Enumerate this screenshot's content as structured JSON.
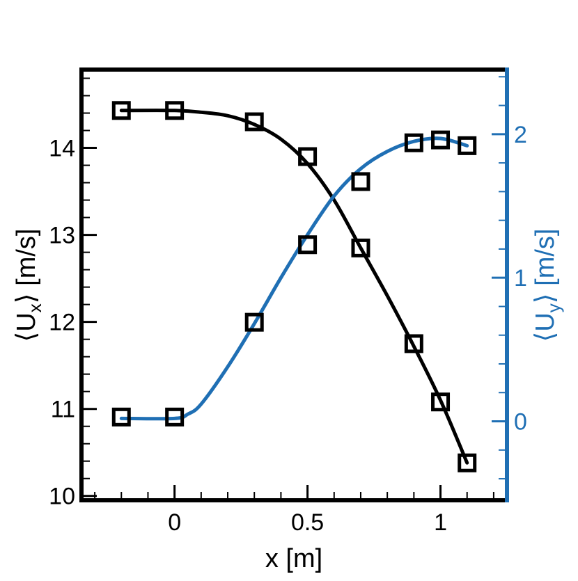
{
  "colors": {
    "ux_series": "#000000",
    "uy_series": "#1f6fb4",
    "left_axis": "#000000",
    "right_axis": "#1f6fb4"
  },
  "chart_data": {
    "type": "line",
    "xlabel": "x [m]",
    "ylabel_left": "⟨U_x⟩ [m/s]",
    "ylabel_right": "⟨U_y⟩ [m/s]",
    "ylabel_left_parts": {
      "pre": "⟨U",
      "sub": "x",
      "post": "⟩ [m/s]"
    },
    "ylabel_right_parts": {
      "pre": "⟨U",
      "sub": "y",
      "post": "⟩ [m/s]"
    },
    "xlim": [
      -0.35,
      1.25
    ],
    "ylim_left": [
      9.95,
      14.9
    ],
    "ylim_right": [
      -0.55,
      2.45
    ],
    "x_ticks": [
      {
        "value": 0,
        "label": "0"
      },
      {
        "value": 0.5,
        "label": "0.5"
      },
      {
        "value": 1,
        "label": "1"
      }
    ],
    "x_minor_step": 0.1,
    "y_left_ticks": [
      {
        "value": 10,
        "label": "10"
      },
      {
        "value": 11,
        "label": "11"
      },
      {
        "value": 12,
        "label": "12"
      },
      {
        "value": 13,
        "label": "13"
      },
      {
        "value": 14,
        "label": "14"
      }
    ],
    "y_left_minor_step": 0.2,
    "y_right_ticks": [
      {
        "value": 0,
        "label": "0"
      },
      {
        "value": 1,
        "label": "1"
      },
      {
        "value": 2,
        "label": "2"
      }
    ],
    "y_right_minor_step": 0.2,
    "grid": false,
    "series": [
      {
        "axis": "left",
        "markers": {
          "x": [
            -0.2,
            0.0,
            0.3,
            0.5,
            0.7,
            0.9,
            1.0,
            1.1
          ],
          "y": [
            14.43,
            14.43,
            14.3,
            13.9,
            12.85,
            11.75,
            11.08,
            10.38
          ]
        },
        "curve": {
          "x": [
            -0.2,
            0.0,
            0.1,
            0.2,
            0.3,
            0.4,
            0.5,
            0.6,
            0.7,
            0.8,
            0.9,
            1.0,
            1.1
          ],
          "y": [
            14.43,
            14.43,
            14.41,
            14.37,
            14.27,
            14.1,
            13.82,
            13.4,
            12.85,
            12.3,
            11.72,
            11.1,
            10.38
          ]
        }
      },
      {
        "axis": "right",
        "markers": {
          "x": [
            -0.2,
            0.0,
            0.3,
            0.5,
            0.7,
            0.9,
            1.0,
            1.1
          ],
          "y": [
            0.03,
            0.03,
            0.69,
            1.23,
            1.67,
            1.94,
            1.96,
            1.92
          ]
        },
        "curve": {
          "x": [
            -0.2,
            0.0,
            0.05,
            0.1,
            0.2,
            0.3,
            0.4,
            0.5,
            0.6,
            0.7,
            0.8,
            0.9,
            1.0,
            1.1
          ],
          "y": [
            0.02,
            0.02,
            0.05,
            0.12,
            0.38,
            0.68,
            1.0,
            1.3,
            1.57,
            1.76,
            1.88,
            1.95,
            1.97,
            1.92
          ]
        }
      }
    ]
  }
}
